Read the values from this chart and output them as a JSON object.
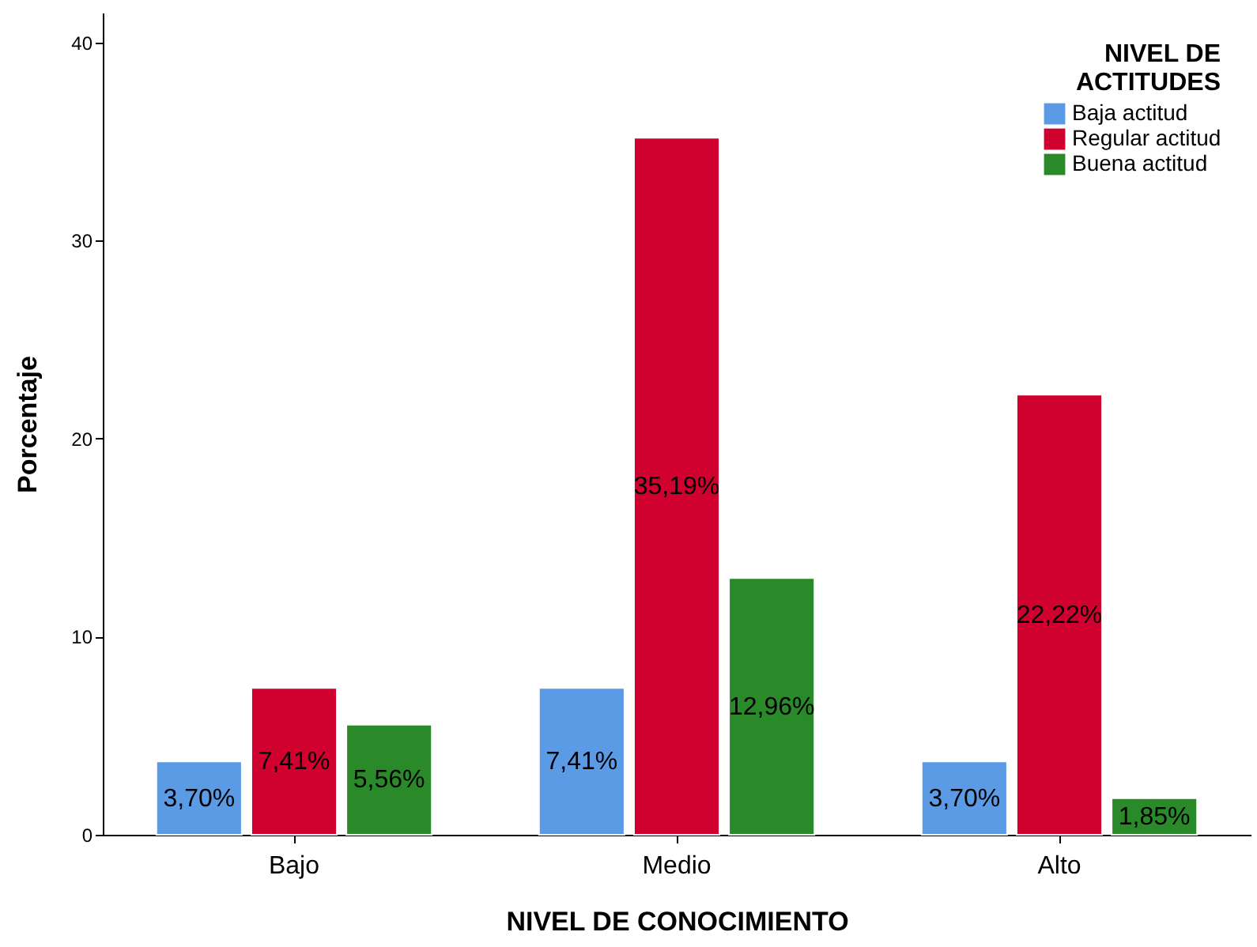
{
  "chart_data": {
    "type": "bar",
    "xlabel": "NIVEL DE CONOCIMIENTO",
    "ylabel": "Porcentaje",
    "legend_title": "NIVEL DE ACTITUDES",
    "legend": "top right",
    "grid": false,
    "categories": [
      "Bajo",
      "Medio",
      "Alto"
    ],
    "ylim": [
      0,
      41.5
    ],
    "yticks": [
      0,
      10,
      20,
      30,
      40
    ],
    "series": [
      {
        "name": "Baja actitud",
        "color": "#5b9be6",
        "values": [
          3.7,
          7.41,
          3.7
        ],
        "value_labels": [
          "3,70%",
          "7,41%",
          "3,70%"
        ]
      },
      {
        "name": "Regular actitud",
        "color": "#d0002f",
        "values": [
          7.41,
          35.19,
          22.22
        ],
        "value_labels": [
          "7,41%",
          "35,19%",
          "22,22%"
        ]
      },
      {
        "name": "Buena actitud",
        "color": "#2a8a2a",
        "values": [
          5.56,
          12.96,
          1.85
        ],
        "value_labels": [
          "5,56%",
          "12,96%",
          "1,85%"
        ]
      }
    ]
  }
}
